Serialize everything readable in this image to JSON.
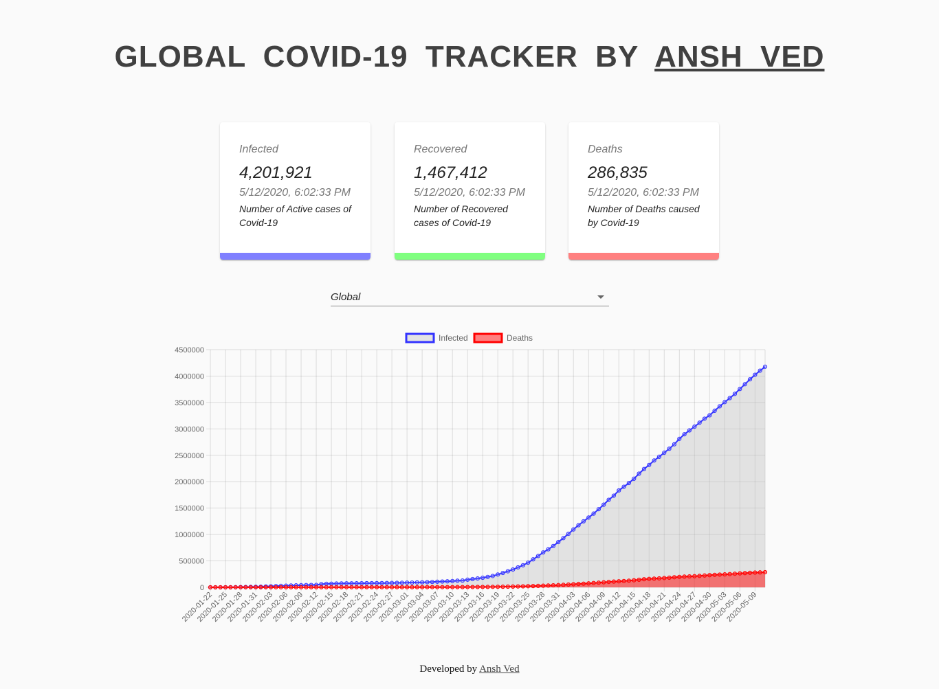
{
  "header": {
    "title_prefix": "GLOBAL COVID-19 TRACKER BY",
    "author": "ANSH VED"
  },
  "cards": [
    {
      "label": "Infected",
      "value": "4,201,921",
      "date": "5/12/2020, 6:02:33 PM",
      "description": "Number of Active cases of Covid-19",
      "color": "#8080ff"
    },
    {
      "label": "Recovered",
      "value": "1,467,412",
      "date": "5/12/2020, 6:02:33 PM",
      "description": "Number of Recovered cases of Covid-19",
      "color": "#80ff80"
    },
    {
      "label": "Deaths",
      "value": "286,835",
      "date": "5/12/2020, 6:02:33 PM",
      "description": "Number of Deaths caused by Covid-19",
      "color": "#ff8080"
    }
  ],
  "country_select": {
    "selected": "Global"
  },
  "footer": {
    "prefix": "Developed by",
    "author": "Ansh Ved"
  },
  "chart_data": {
    "type": "line",
    "x_start": "2020-01-22",
    "x_end": "2020-05-11",
    "x_tick_every": 3,
    "ylim": [
      0,
      4500000
    ],
    "y_ticks": [
      0,
      500000,
      1000000,
      1500000,
      2000000,
      2500000,
      3000000,
      3500000,
      4000000,
      4500000
    ],
    "grid": true,
    "legend": "top",
    "series": [
      {
        "name": "Infected",
        "color": "#3333ff",
        "fill": "rgba(190,190,190,0.4)",
        "values": [
          555,
          654,
          941,
          1434,
          2118,
          2927,
          5578,
          6166,
          8234,
          9927,
          12038,
          16787,
          19881,
          23892,
          27635,
          30794,
          34391,
          37120,
          40150,
          42762,
          44802,
          45221,
          60368,
          66885,
          69030,
          71224,
          73258,
          75136,
          75639,
          76197,
          76819,
          78572,
          78958,
          79561,
          80406,
          81388,
          82746,
          84112,
          86011,
          88369,
          90306,
          92840,
          95120,
          97886,
          101801,
          105847,
          109821,
          113590,
          118620,
          125875,
          128352,
          145205,
          156101,
          167454,
          181574,
          197102,
          214821,
          242570,
          272208,
          304507,
          336953,
          378235,
          418045,
          467653,
          529591,
          593291,
          660706,
          720117,
          782365,
          857487,
          932605,
          1013466,
          1095917,
          1176060,
          1249754,
          1321481,
          1396476,
          1480202,
          1565278,
          1657526,
          1735650,
          1834721,
          1904838,
          1976191,
          2056054,
          2152437,
          2240190,
          2317758,
          2401378,
          2472259,
          2549123,
          2623960,
          2708885,
          2811193,
          2897645,
          2971475,
          3041764,
          3116398,
          3193886,
          3256846,
          3343777,
          3427343,
          3506729,
          3583055,
          3662691,
          3755341,
          3845718,
          3938064,
          4024009,
          4101699,
          4177502
        ]
      },
      {
        "name": "Deaths",
        "color": "#ff0000",
        "fill": "rgba(255,0,0,0.5)",
        "values": [
          17,
          18,
          26,
          42,
          56,
          82,
          131,
          133,
          171,
          213,
          259,
          362,
          426,
          492,
          564,
          634,
          719,
          806,
          906,
          1013,
          1113,
          1118,
          1371,
          1523,
          1666,
          1770,
          1868,
          2007,
          2122,
          2247,
          2251,
          2458,
          2469,
          2629,
          2708,
          2770,
          2814,
          2872,
          2941,
          2996,
          3085,
          3160,
          3254,
          3348,
          3460,
          3558,
          3803,
          3996,
          4262,
          4615,
          4720,
          5404,
          5819,
          6440,
          7126,
          7905,
          8733,
          9867,
          11299,
          12973,
          14623,
          16497,
          18615,
          21181,
          23970,
          27198,
          30652,
          33925,
          37582,
          42107,
          46809,
          52983,
          58787,
          64606,
          69374,
          74565,
          81865,
          88338,
          95455,
          102525,
          108503,
          114091,
          119482,
          125984,
          134177,
          143800,
          153821,
          159509,
          165043,
          169986,
          176583,
          183066,
          190858,
          197159,
          202846,
          206544,
          211167,
          217153,
          224172,
          230793,
          236698,
          240716,
          245142,
          251128,
          257299,
          263831,
          269567,
          274898,
          279311,
          282709,
          286835
        ]
      }
    ]
  }
}
